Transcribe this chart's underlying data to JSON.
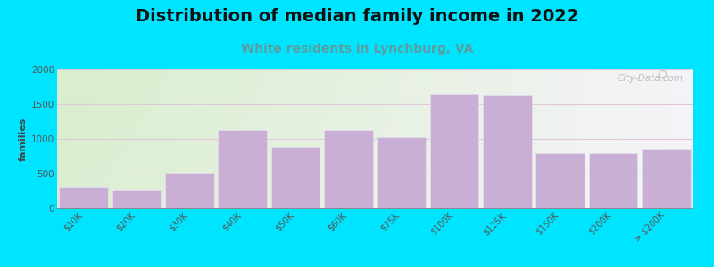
{
  "title": "Distribution of median family income in 2022",
  "subtitle": "White residents in Lynchburg, VA",
  "ylabel": "families",
  "categories": [
    "$10K",
    "$20K",
    "$30K",
    "$40K",
    "$50K",
    "$60K",
    "$75K",
    "$100K",
    "$125K",
    "$150K",
    "$200K",
    "> $200K"
  ],
  "values": [
    310,
    255,
    510,
    1130,
    880,
    1130,
    1025,
    1640,
    1630,
    790,
    790,
    855
  ],
  "bar_color": "#c9aed6",
  "bar_edge_color": "#e8e0ee",
  "background_outer": "#00e5ff",
  "bg_green": "#d8eecc",
  "bg_white": "#f5f4f8",
  "ylim": [
    0,
    2000
  ],
  "yticks": [
    0,
    500,
    1000,
    1500,
    2000
  ],
  "title_fontsize": 14,
  "subtitle_fontsize": 10,
  "ylabel_fontsize": 8,
  "tick_fontsize": 7,
  "watermark_text": "City-Data.com",
  "grid_color": "#e0c8d8"
}
